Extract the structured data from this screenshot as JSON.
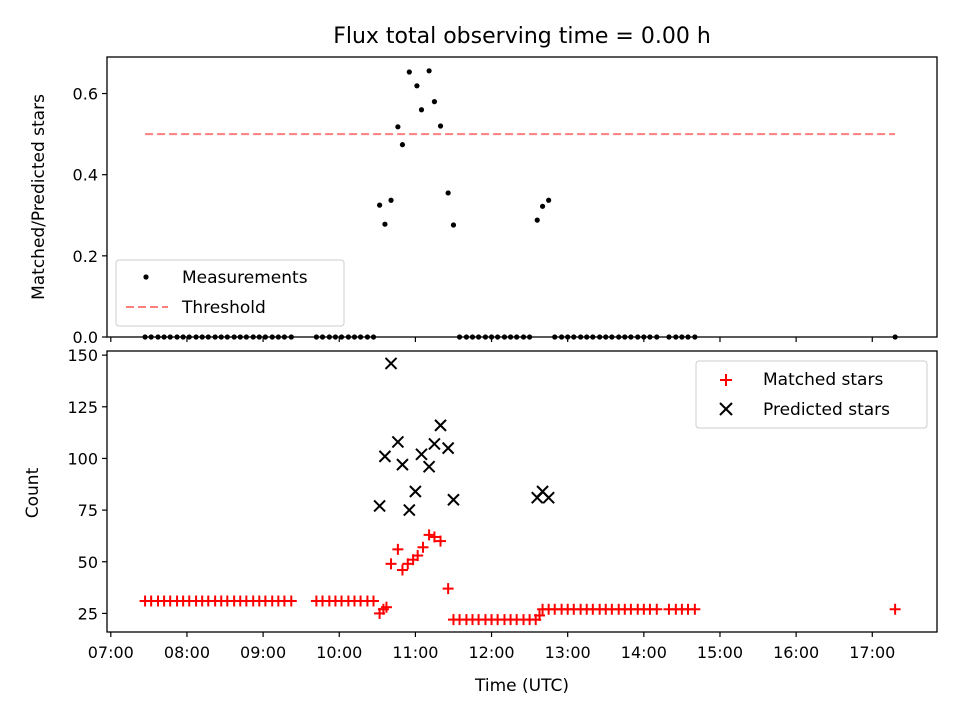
{
  "figure": {
    "title": "Flux total observing time = 0.00 h",
    "xlabel": "Time (UTC)"
  },
  "chart_data": [
    {
      "type": "scatter",
      "ylabel": "Matched/Predicted stars",
      "ylim": [
        0,
        0.69
      ],
      "yticks": [
        0.0,
        0.2,
        0.4,
        0.6
      ],
      "ytick_labels": [
        "0.0",
        "0.2",
        "0.4",
        "0.6"
      ],
      "xlim": [
        6.95,
        17.85
      ],
      "legend": "lower-left",
      "threshold": {
        "name": "Threshold",
        "value": 0.5,
        "x": [
          7.45,
          17.3
        ],
        "color": "#ff7f7f"
      },
      "series": [
        {
          "name": "Measurements",
          "color": "#000000",
          "marker": "dot",
          "points": [
            [
              7.45,
              0
            ],
            [
              7.53,
              0
            ],
            [
              7.62,
              0
            ],
            [
              7.7,
              0
            ],
            [
              7.78,
              0
            ],
            [
              7.87,
              0
            ],
            [
              7.95,
              0
            ],
            [
              8.03,
              0
            ],
            [
              8.12,
              0
            ],
            [
              8.2,
              0
            ],
            [
              8.28,
              0
            ],
            [
              8.37,
              0
            ],
            [
              8.45,
              0
            ],
            [
              8.53,
              0
            ],
            [
              8.62,
              0
            ],
            [
              8.7,
              0
            ],
            [
              8.78,
              0
            ],
            [
              8.87,
              0
            ],
            [
              8.95,
              0
            ],
            [
              9.03,
              0
            ],
            [
              9.12,
              0
            ],
            [
              9.2,
              0
            ],
            [
              9.28,
              0
            ],
            [
              9.37,
              0
            ],
            [
              9.7,
              0
            ],
            [
              9.78,
              0
            ],
            [
              9.87,
              0
            ],
            [
              9.95,
              0
            ],
            [
              10.03,
              0
            ],
            [
              10.12,
              0
            ],
            [
              10.2,
              0
            ],
            [
              10.28,
              0
            ],
            [
              10.37,
              0
            ],
            [
              10.45,
              0
            ],
            [
              10.53,
              0.325
            ],
            [
              10.6,
              0.278
            ],
            [
              10.68,
              0.337
            ],
            [
              10.77,
              0.518
            ],
            [
              10.83,
              0.474
            ],
            [
              10.92,
              0.653
            ],
            [
              11.02,
              0.619
            ],
            [
              11.08,
              0.56
            ],
            [
              11.18,
              0.656
            ],
            [
              11.25,
              0.58
            ],
            [
              11.33,
              0.52
            ],
            [
              11.43,
              0.355
            ],
            [
              11.5,
              0.276
            ],
            [
              11.58,
              0
            ],
            [
              11.67,
              0
            ],
            [
              11.75,
              0
            ],
            [
              11.83,
              0
            ],
            [
              11.92,
              0
            ],
            [
              12.0,
              0
            ],
            [
              12.08,
              0
            ],
            [
              12.17,
              0
            ],
            [
              12.25,
              0
            ],
            [
              12.33,
              0
            ],
            [
              12.42,
              0
            ],
            [
              12.5,
              0
            ],
            [
              12.6,
              0.288
            ],
            [
              12.67,
              0.322
            ],
            [
              12.75,
              0.337
            ],
            [
              12.83,
              0
            ],
            [
              12.92,
              0
            ],
            [
              13.0,
              0
            ],
            [
              13.08,
              0
            ],
            [
              13.17,
              0
            ],
            [
              13.25,
              0
            ],
            [
              13.33,
              0
            ],
            [
              13.42,
              0
            ],
            [
              13.5,
              0
            ],
            [
              13.58,
              0
            ],
            [
              13.67,
              0
            ],
            [
              13.75,
              0
            ],
            [
              13.83,
              0
            ],
            [
              13.92,
              0
            ],
            [
              14.0,
              0
            ],
            [
              14.08,
              0
            ],
            [
              14.17,
              0
            ],
            [
              14.33,
              0
            ],
            [
              14.42,
              0
            ],
            [
              14.5,
              0
            ],
            [
              14.58,
              0
            ],
            [
              14.67,
              0
            ],
            [
              17.3,
              0
            ]
          ]
        }
      ]
    },
    {
      "type": "scatter",
      "ylabel": "Count",
      "ylim": [
        16,
        152
      ],
      "yticks": [
        25,
        50,
        75,
        100,
        125,
        150
      ],
      "ytick_labels": [
        "25",
        "50",
        "75",
        "100",
        "125",
        "150"
      ],
      "xlim": [
        6.95,
        17.85
      ],
      "xticks": [
        7,
        8,
        9,
        10,
        11,
        12,
        13,
        14,
        15,
        16,
        17
      ],
      "xtick_labels": [
        "07:00",
        "08:00",
        "09:00",
        "10:00",
        "11:00",
        "12:00",
        "13:00",
        "14:00",
        "15:00",
        "16:00",
        "17:00"
      ],
      "legend": "upper-right",
      "series": [
        {
          "name": "Matched stars",
          "color": "#ff0000",
          "marker": "plus",
          "points": [
            [
              7.45,
              31
            ],
            [
              7.53,
              31
            ],
            [
              7.62,
              31
            ],
            [
              7.7,
              31
            ],
            [
              7.78,
              31
            ],
            [
              7.87,
              31
            ],
            [
              7.95,
              31
            ],
            [
              8.03,
              31
            ],
            [
              8.12,
              31
            ],
            [
              8.2,
              31
            ],
            [
              8.28,
              31
            ],
            [
              8.37,
              31
            ],
            [
              8.45,
              31
            ],
            [
              8.53,
              31
            ],
            [
              8.62,
              31
            ],
            [
              8.7,
              31
            ],
            [
              8.78,
              31
            ],
            [
              8.87,
              31
            ],
            [
              8.95,
              31
            ],
            [
              9.03,
              31
            ],
            [
              9.12,
              31
            ],
            [
              9.2,
              31
            ],
            [
              9.28,
              31
            ],
            [
              9.37,
              31
            ],
            [
              9.7,
              31
            ],
            [
              9.78,
              31
            ],
            [
              9.87,
              31
            ],
            [
              9.95,
              31
            ],
            [
              10.03,
              31
            ],
            [
              10.12,
              31
            ],
            [
              10.2,
              31
            ],
            [
              10.28,
              31
            ],
            [
              10.37,
              31
            ],
            [
              10.45,
              31
            ],
            [
              10.53,
              25
            ],
            [
              10.58,
              27
            ],
            [
              10.62,
              28
            ],
            [
              10.68,
              49
            ],
            [
              10.77,
              56
            ],
            [
              10.83,
              46
            ],
            [
              10.9,
              49
            ],
            [
              10.97,
              51
            ],
            [
              11.03,
              53
            ],
            [
              11.1,
              57
            ],
            [
              11.18,
              63
            ],
            [
              11.25,
              62
            ],
            [
              11.33,
              60
            ],
            [
              11.43,
              37
            ],
            [
              11.5,
              22
            ],
            [
              11.58,
              22
            ],
            [
              11.67,
              22
            ],
            [
              11.75,
              22
            ],
            [
              11.83,
              22
            ],
            [
              11.92,
              22
            ],
            [
              12.0,
              22
            ],
            [
              12.08,
              22
            ],
            [
              12.17,
              22
            ],
            [
              12.25,
              22
            ],
            [
              12.33,
              22
            ],
            [
              12.42,
              22
            ],
            [
              12.5,
              22
            ],
            [
              12.58,
              22
            ],
            [
              12.63,
              24
            ],
            [
              12.67,
              27
            ],
            [
              12.75,
              27
            ],
            [
              12.83,
              27
            ],
            [
              12.92,
              27
            ],
            [
              13.0,
              27
            ],
            [
              13.08,
              27
            ],
            [
              13.17,
              27
            ],
            [
              13.25,
              27
            ],
            [
              13.33,
              27
            ],
            [
              13.42,
              27
            ],
            [
              13.5,
              27
            ],
            [
              13.58,
              27
            ],
            [
              13.67,
              27
            ],
            [
              13.75,
              27
            ],
            [
              13.83,
              27
            ],
            [
              13.92,
              27
            ],
            [
              14.0,
              27
            ],
            [
              14.08,
              27
            ],
            [
              14.17,
              27
            ],
            [
              14.33,
              27
            ],
            [
              14.42,
              27
            ],
            [
              14.5,
              27
            ],
            [
              14.58,
              27
            ],
            [
              14.67,
              27
            ],
            [
              17.3,
              27
            ]
          ]
        },
        {
          "name": "Predicted stars",
          "color": "#000000",
          "marker": "x",
          "points": [
            [
              10.53,
              77
            ],
            [
              10.6,
              101
            ],
            [
              10.68,
              146
            ],
            [
              10.77,
              108
            ],
            [
              10.83,
              97
            ],
            [
              10.92,
              75
            ],
            [
              11.0,
              84
            ],
            [
              11.08,
              102
            ],
            [
              11.18,
              96
            ],
            [
              11.25,
              107
            ],
            [
              11.33,
              116
            ],
            [
              11.43,
              105
            ],
            [
              11.5,
              80
            ],
            [
              12.6,
              81
            ],
            [
              12.67,
              84
            ],
            [
              12.75,
              81
            ]
          ]
        }
      ]
    }
  ]
}
